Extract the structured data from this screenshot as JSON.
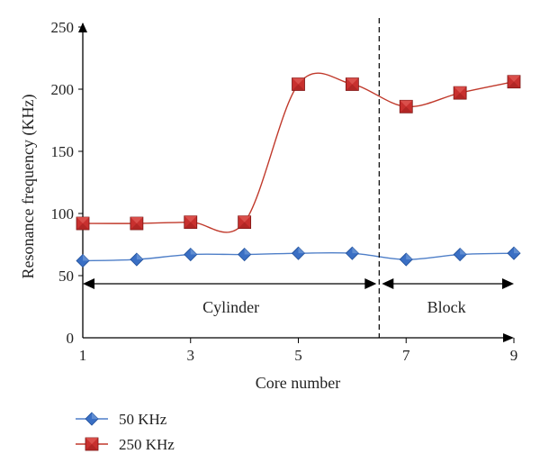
{
  "chart_data": {
    "type": "line",
    "xlabel": "Core number",
    "ylabel": "Resonance frequency (KHz)",
    "xlim": [
      1,
      9
    ],
    "ylim": [
      0,
      250
    ],
    "x_ticks": [
      "1",
      "3",
      "5",
      "7",
      "9"
    ],
    "y_ticks": [
      "0",
      "50",
      "100",
      "150",
      "200",
      "250"
    ],
    "x": [
      1,
      2,
      3,
      4,
      5,
      6,
      7,
      8,
      9
    ],
    "series": [
      {
        "name": "50 KHz",
        "color": "#3a6fc4",
        "line_color": "#4f7fc8",
        "marker": "diamond",
        "values": [
          62,
          63,
          67,
          67,
          68,
          68,
          63,
          67,
          68
        ]
      },
      {
        "name": "250 KHz",
        "color": "#c8302e",
        "line_color": "#c0392b",
        "marker": "square",
        "values": [
          92,
          92,
          93,
          93,
          204,
          204,
          186,
          197,
          206
        ]
      }
    ],
    "regions": [
      {
        "label": "Cylinder",
        "from": 1,
        "to": 6.5
      },
      {
        "label": "Block",
        "from": 6.5,
        "to": 9
      }
    ],
    "separator_x": 6.5,
    "grid": false,
    "legend_position": "bottom-left"
  }
}
